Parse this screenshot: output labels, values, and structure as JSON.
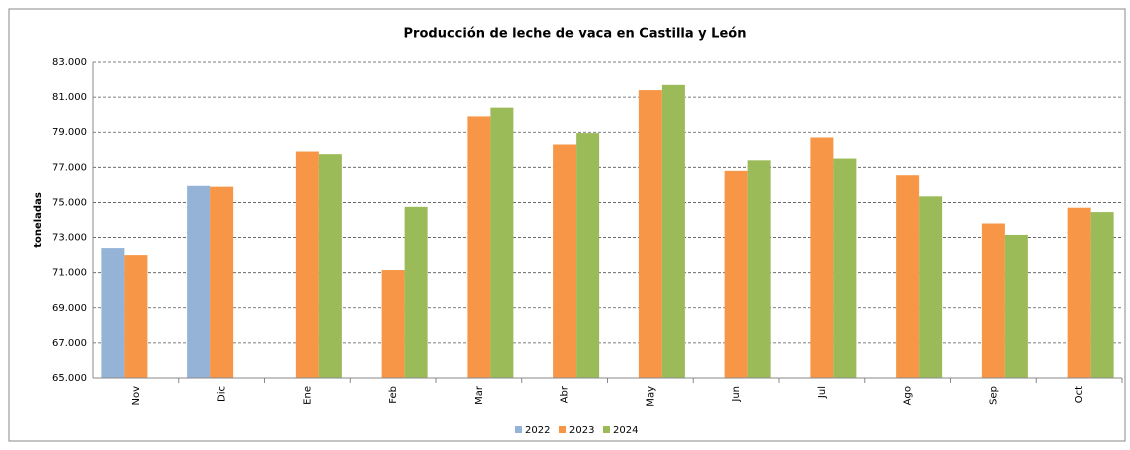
{
  "chart_data": {
    "type": "bar",
    "title": "Producción de leche de vaca en Castilla y León",
    "y_label": "toneladas",
    "categories": [
      "Nov",
      "Dic",
      "Ene",
      "Feb",
      "Mar",
      "Abr",
      "May",
      "Jun",
      "Jul",
      "Ago",
      "Sep",
      "Oct"
    ],
    "series": [
      {
        "name": "2022",
        "color": "#95b3d7",
        "values": [
          72400,
          75950,
          null,
          null,
          null,
          null,
          null,
          null,
          null,
          null,
          null,
          null
        ]
      },
      {
        "name": "2023",
        "color": "#f79646",
        "values": [
          72000,
          75900,
          77900,
          71150,
          79900,
          78300,
          81400,
          76800,
          78700,
          76550,
          73800,
          74700
        ]
      },
      {
        "name": "2024",
        "color": "#9bbb59",
        "values": [
          null,
          null,
          77750,
          74750,
          80400,
          78950,
          81700,
          77400,
          77500,
          75350,
          73150,
          74450
        ]
      }
    ],
    "ylim": [
      65000,
      83000
    ],
    "yticks": [
      {
        "value": 65000,
        "label": "65.000"
      },
      {
        "value": 67000,
        "label": "67.000"
      },
      {
        "value": 69000,
        "label": "69.000"
      },
      {
        "value": 71000,
        "label": "71.000"
      },
      {
        "value": 73000,
        "label": "73.000"
      },
      {
        "value": 75000,
        "label": "75.000"
      },
      {
        "value": 77000,
        "label": "77.000"
      },
      {
        "value": 79000,
        "label": "79.000"
      },
      {
        "value": 81000,
        "label": "81.000"
      },
      {
        "value": 83000,
        "label": "83.000"
      }
    ],
    "grid": true,
    "legend": "bottom"
  }
}
